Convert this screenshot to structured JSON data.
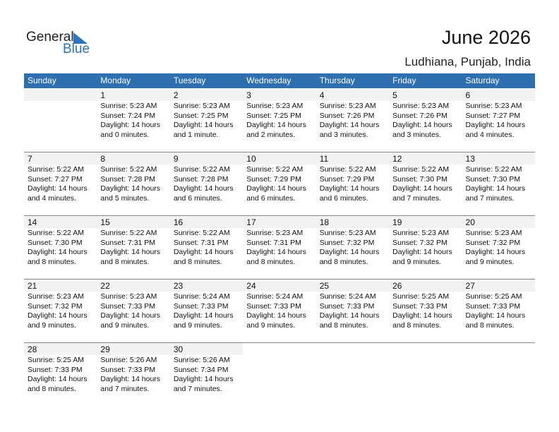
{
  "logo": {
    "text1": "General",
    "text2": "Blue"
  },
  "title": "June 2026",
  "location": "Ludhiana, Punjab, India",
  "weekdays": [
    "Sunday",
    "Monday",
    "Tuesday",
    "Wednesday",
    "Thursday",
    "Friday",
    "Saturday"
  ],
  "colors": {
    "header": "#2e6fb0",
    "day_band": "#f2f2f2"
  },
  "first_weekday_index": 1,
  "days": [
    {
      "d": "1",
      "sunrise": "Sunrise: 5:23 AM",
      "sunset": "Sunset: 7:24 PM",
      "daylight": "Daylight: 14 hours",
      "rest": "and 0 minutes."
    },
    {
      "d": "2",
      "sunrise": "Sunrise: 5:23 AM",
      "sunset": "Sunset: 7:25 PM",
      "daylight": "Daylight: 14 hours",
      "rest": "and 1 minute."
    },
    {
      "d": "3",
      "sunrise": "Sunrise: 5:23 AM",
      "sunset": "Sunset: 7:25 PM",
      "daylight": "Daylight: 14 hours",
      "rest": "and 2 minutes."
    },
    {
      "d": "4",
      "sunrise": "Sunrise: 5:23 AM",
      "sunset": "Sunset: 7:26 PM",
      "daylight": "Daylight: 14 hours",
      "rest": "and 3 minutes."
    },
    {
      "d": "5",
      "sunrise": "Sunrise: 5:23 AM",
      "sunset": "Sunset: 7:26 PM",
      "daylight": "Daylight: 14 hours",
      "rest": "and 3 minutes."
    },
    {
      "d": "6",
      "sunrise": "Sunrise: 5:23 AM",
      "sunset": "Sunset: 7:27 PM",
      "daylight": "Daylight: 14 hours",
      "rest": "and 4 minutes."
    },
    {
      "d": "7",
      "sunrise": "Sunrise: 5:22 AM",
      "sunset": "Sunset: 7:27 PM",
      "daylight": "Daylight: 14 hours",
      "rest": "and 4 minutes."
    },
    {
      "d": "8",
      "sunrise": "Sunrise: 5:22 AM",
      "sunset": "Sunset: 7:28 PM",
      "daylight": "Daylight: 14 hours",
      "rest": "and 5 minutes."
    },
    {
      "d": "9",
      "sunrise": "Sunrise: 5:22 AM",
      "sunset": "Sunset: 7:28 PM",
      "daylight": "Daylight: 14 hours",
      "rest": "and 6 minutes."
    },
    {
      "d": "10",
      "sunrise": "Sunrise: 5:22 AM",
      "sunset": "Sunset: 7:29 PM",
      "daylight": "Daylight: 14 hours",
      "rest": "and 6 minutes."
    },
    {
      "d": "11",
      "sunrise": "Sunrise: 5:22 AM",
      "sunset": "Sunset: 7:29 PM",
      "daylight": "Daylight: 14 hours",
      "rest": "and 6 minutes."
    },
    {
      "d": "12",
      "sunrise": "Sunrise: 5:22 AM",
      "sunset": "Sunset: 7:30 PM",
      "daylight": "Daylight: 14 hours",
      "rest": "and 7 minutes."
    },
    {
      "d": "13",
      "sunrise": "Sunrise: 5:22 AM",
      "sunset": "Sunset: 7:30 PM",
      "daylight": "Daylight: 14 hours",
      "rest": "and 7 minutes."
    },
    {
      "d": "14",
      "sunrise": "Sunrise: 5:22 AM",
      "sunset": "Sunset: 7:30 PM",
      "daylight": "Daylight: 14 hours",
      "rest": "and 8 minutes."
    },
    {
      "d": "15",
      "sunrise": "Sunrise: 5:22 AM",
      "sunset": "Sunset: 7:31 PM",
      "daylight": "Daylight: 14 hours",
      "rest": "and 8 minutes."
    },
    {
      "d": "16",
      "sunrise": "Sunrise: 5:22 AM",
      "sunset": "Sunset: 7:31 PM",
      "daylight": "Daylight: 14 hours",
      "rest": "and 8 minutes."
    },
    {
      "d": "17",
      "sunrise": "Sunrise: 5:23 AM",
      "sunset": "Sunset: 7:31 PM",
      "daylight": "Daylight: 14 hours",
      "rest": "and 8 minutes."
    },
    {
      "d": "18",
      "sunrise": "Sunrise: 5:23 AM",
      "sunset": "Sunset: 7:32 PM",
      "daylight": "Daylight: 14 hours",
      "rest": "and 8 minutes."
    },
    {
      "d": "19",
      "sunrise": "Sunrise: 5:23 AM",
      "sunset": "Sunset: 7:32 PM",
      "daylight": "Daylight: 14 hours",
      "rest": "and 9 minutes."
    },
    {
      "d": "20",
      "sunrise": "Sunrise: 5:23 AM",
      "sunset": "Sunset: 7:32 PM",
      "daylight": "Daylight: 14 hours",
      "rest": "and 9 minutes."
    },
    {
      "d": "21",
      "sunrise": "Sunrise: 5:23 AM",
      "sunset": "Sunset: 7:32 PM",
      "daylight": "Daylight: 14 hours",
      "rest": "and 9 minutes."
    },
    {
      "d": "22",
      "sunrise": "Sunrise: 5:23 AM",
      "sunset": "Sunset: 7:33 PM",
      "daylight": "Daylight: 14 hours",
      "rest": "and 9 minutes."
    },
    {
      "d": "23",
      "sunrise": "Sunrise: 5:24 AM",
      "sunset": "Sunset: 7:33 PM",
      "daylight": "Daylight: 14 hours",
      "rest": "and 9 minutes."
    },
    {
      "d": "24",
      "sunrise": "Sunrise: 5:24 AM",
      "sunset": "Sunset: 7:33 PM",
      "daylight": "Daylight: 14 hours",
      "rest": "and 9 minutes."
    },
    {
      "d": "25",
      "sunrise": "Sunrise: 5:24 AM",
      "sunset": "Sunset: 7:33 PM",
      "daylight": "Daylight: 14 hours",
      "rest": "and 8 minutes."
    },
    {
      "d": "26",
      "sunrise": "Sunrise: 5:25 AM",
      "sunset": "Sunset: 7:33 PM",
      "daylight": "Daylight: 14 hours",
      "rest": "and 8 minutes."
    },
    {
      "d": "27",
      "sunrise": "Sunrise: 5:25 AM",
      "sunset": "Sunset: 7:33 PM",
      "daylight": "Daylight: 14 hours",
      "rest": "and 8 minutes."
    },
    {
      "d": "28",
      "sunrise": "Sunrise: 5:25 AM",
      "sunset": "Sunset: 7:33 PM",
      "daylight": "Daylight: 14 hours",
      "rest": "and 8 minutes."
    },
    {
      "d": "29",
      "sunrise": "Sunrise: 5:26 AM",
      "sunset": "Sunset: 7:33 PM",
      "daylight": "Daylight: 14 hours",
      "rest": "and 7 minutes."
    },
    {
      "d": "30",
      "sunrise": "Sunrise: 5:26 AM",
      "sunset": "Sunset: 7:34 PM",
      "daylight": "Daylight: 14 hours",
      "rest": "and 7 minutes."
    }
  ]
}
